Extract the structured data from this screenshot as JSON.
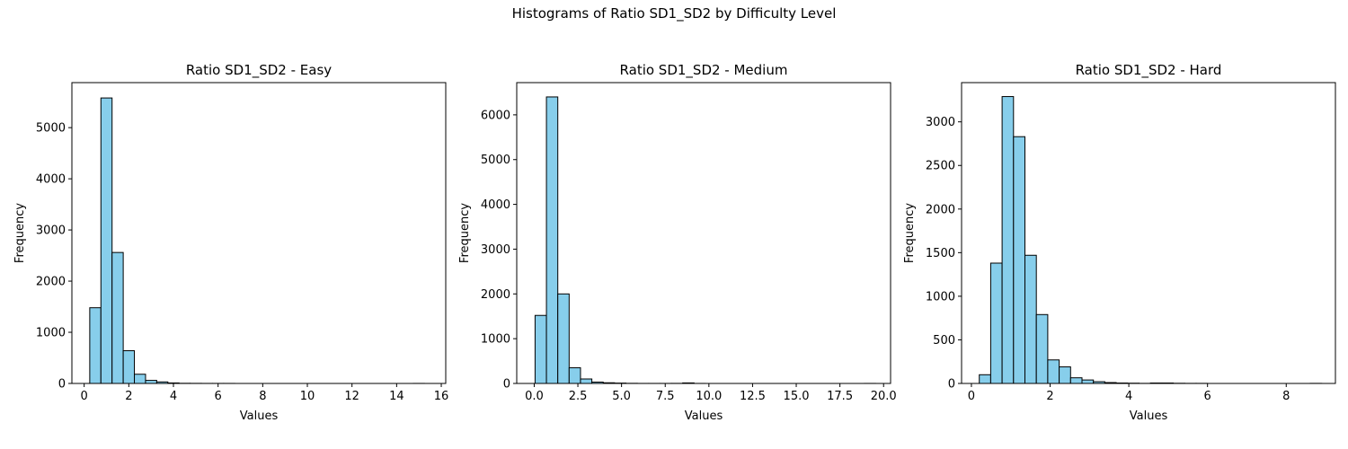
{
  "figure": {
    "suptitle": "Histograms of Ratio SD1_SD2 by Difficulty Level"
  },
  "colors": {
    "bar_fill": "#87ceeb",
    "bar_edge": "#000000"
  },
  "chart_data": [
    {
      "type": "bar",
      "title": "Ratio SD1_SD2 - Easy",
      "xlabel": "Values",
      "ylabel": "Frequency",
      "xlim": [
        -0.55,
        16.2
      ],
      "ylim": [
        0,
        5880
      ],
      "xticks": [
        0,
        2,
        4,
        6,
        8,
        10,
        12,
        14,
        16
      ],
      "xtick_labels": [
        "0",
        "2",
        "4",
        "6",
        "8",
        "10",
        "12",
        "14",
        "16"
      ],
      "yticks": [
        0,
        1000,
        2000,
        3000,
        4000,
        5000
      ],
      "ytick_labels": [
        "0",
        "1000",
        "2000",
        "3000",
        "4000",
        "5000"
      ],
      "bin_start": 0.25,
      "bin_width": 0.5,
      "values": [
        1480,
        5580,
        2560,
        640,
        180,
        60,
        30,
        10,
        3,
        2,
        1,
        1,
        1,
        0,
        0,
        0,
        0,
        0,
        0,
        0,
        0,
        0,
        0,
        0,
        0,
        0,
        0,
        0,
        0,
        1
      ]
    },
    {
      "type": "bar",
      "title": "Ratio SD1_SD2 - Medium",
      "xlabel": "Values",
      "ylabel": "Frequency",
      "xlim": [
        -1.0,
        20.4
      ],
      "ylim": [
        0,
        6720
      ],
      "xticks": [
        0,
        2.5,
        5,
        7.5,
        10,
        12.5,
        15,
        17.5,
        20
      ],
      "xtick_labels": [
        "0.0",
        "2.5",
        "5.0",
        "7.5",
        "10.0",
        "12.5",
        "15.0",
        "17.5",
        "20.0"
      ],
      "yticks": [
        0,
        1000,
        2000,
        3000,
        4000,
        5000,
        6000
      ],
      "ytick_labels": [
        "0",
        "1000",
        "2000",
        "3000",
        "4000",
        "5000",
        "6000"
      ],
      "bin_start": 0.05,
      "bin_width": 0.65,
      "values": [
        1520,
        6400,
        2000,
        350,
        100,
        30,
        15,
        8,
        3,
        1,
        1,
        1,
        2,
        12,
        1,
        0,
        0,
        0,
        0,
        0,
        0,
        0,
        0,
        0,
        0,
        0,
        0,
        0,
        0,
        1
      ]
    },
    {
      "type": "bar",
      "title": "Ratio SD1_SD2 - Hard",
      "xlabel": "Values",
      "ylabel": "Frequency",
      "xlim": [
        -0.25,
        9.25
      ],
      "ylim": [
        0,
        3450
      ],
      "xticks": [
        0,
        2,
        4,
        6,
        8
      ],
      "xtick_labels": [
        "0",
        "2",
        "4",
        "6",
        "8"
      ],
      "yticks": [
        0,
        500,
        1000,
        1500,
        2000,
        2500,
        3000
      ],
      "ytick_labels": [
        "0",
        "500",
        "1000",
        "1500",
        "2000",
        "2500",
        "3000"
      ],
      "bin_start": 0.2,
      "bin_width": 0.29,
      "values": [
        100,
        1380,
        3290,
        2830,
        1470,
        790,
        270,
        190,
        65,
        40,
        20,
        10,
        5,
        3,
        1,
        5,
        5,
        2,
        1,
        1,
        0,
        0,
        0,
        0,
        0,
        0,
        0,
        0,
        0,
        1
      ]
    }
  ]
}
